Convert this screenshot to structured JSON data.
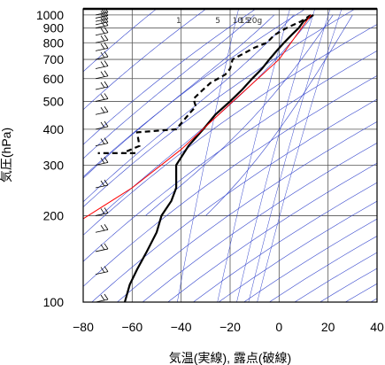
{
  "chart_data": {
    "type": "line",
    "xlabel": "気温(実線), 露点(破線)",
    "ylabel": "気圧(hPa)",
    "xlim": [
      -80,
      40
    ],
    "ylim": [
      1050,
      100
    ],
    "y_scale": "log",
    "x_ticks": [
      "−80",
      "−60",
      "−40",
      "−20",
      "0",
      "20",
      "40"
    ],
    "x_tick_values": [
      -80,
      -60,
      -40,
      -20,
      0,
      20,
      40
    ],
    "y_ticks": [
      "100",
      "200",
      "300",
      "400",
      "500",
      "600",
      "700",
      "800",
      "900",
      "1000"
    ],
    "y_tick_values": [
      100,
      200,
      300,
      400,
      500,
      600,
      700,
      800,
      900,
      1000
    ],
    "mixing_ratio_labels": [
      "1",
      "5",
      "10",
      "15",
      "20g"
    ],
    "mixing_ratio_values": [
      1,
      5,
      10,
      15,
      20
    ],
    "mixing_ratio_label_x": [
      -41,
      -25,
      -17,
      -14,
      -10
    ],
    "dry_adiabat_thetas": [
      220,
      240,
      260,
      280,
      300,
      320,
      340,
      360,
      380,
      400,
      420,
      440,
      460,
      480,
      500,
      520,
      540,
      560,
      580,
      600,
      620,
      640,
      660,
      680,
      700
    ],
    "moist_adiabat_start_temps": [
      -10,
      -2,
      6,
      14,
      22,
      30
    ],
    "series": [
      {
        "style": "solid",
        "color": "#000000",
        "points": [
          [
            14,
            1000
          ],
          [
            10,
            950
          ],
          [
            8,
            900
          ],
          [
            5,
            850
          ],
          [
            2,
            800
          ],
          [
            -1,
            750
          ],
          [
            -4,
            700
          ],
          [
            -7,
            650
          ],
          [
            -11,
            600
          ],
          [
            -15,
            550
          ],
          [
            -20,
            500
          ],
          [
            -26,
            450
          ],
          [
            -31,
            400
          ],
          [
            -37,
            350
          ],
          [
            -42,
            300
          ],
          [
            -42,
            275
          ],
          [
            -42,
            250
          ],
          [
            -44,
            225
          ],
          [
            -48,
            200
          ],
          [
            -50,
            175
          ],
          [
            -54,
            150
          ],
          [
            -58,
            130
          ],
          [
            -61,
            115
          ],
          [
            -63,
            100
          ]
        ]
      },
      {
        "style": "dashed",
        "color": "#000000",
        "points": [
          [
            13,
            1000
          ],
          [
            9,
            950
          ],
          [
            3,
            900
          ],
          [
            -2,
            850
          ],
          [
            -5,
            800
          ],
          [
            -10,
            770
          ],
          [
            -19,
            700
          ],
          [
            -20,
            650
          ],
          [
            -22,
            620
          ],
          [
            -28,
            580
          ],
          [
            -31,
            550
          ],
          [
            -35,
            510
          ],
          [
            -34,
            480
          ],
          [
            -36,
            460
          ],
          [
            -42,
            400
          ],
          [
            -58,
            390
          ],
          [
            -57,
            350
          ],
          [
            -64,
            330
          ],
          [
            -58,
            330
          ],
          [
            -74,
            330
          ]
        ]
      },
      {
        "style": "solid",
        "color": "#ff0000",
        "points": [
          [
            -80,
            195
          ],
          [
            -60,
            250
          ],
          [
            -40,
            340
          ],
          [
            -20,
            490
          ],
          [
            0,
            700
          ],
          [
            13,
            1000
          ]
        ]
      }
    ],
    "wind_barb_levels": [
      100,
      125,
      150,
      175,
      200,
      250,
      300,
      350,
      400,
      450,
      500,
      550,
      600,
      650,
      700,
      750,
      800,
      850,
      900,
      925,
      950,
      975,
      1000
    ]
  }
}
